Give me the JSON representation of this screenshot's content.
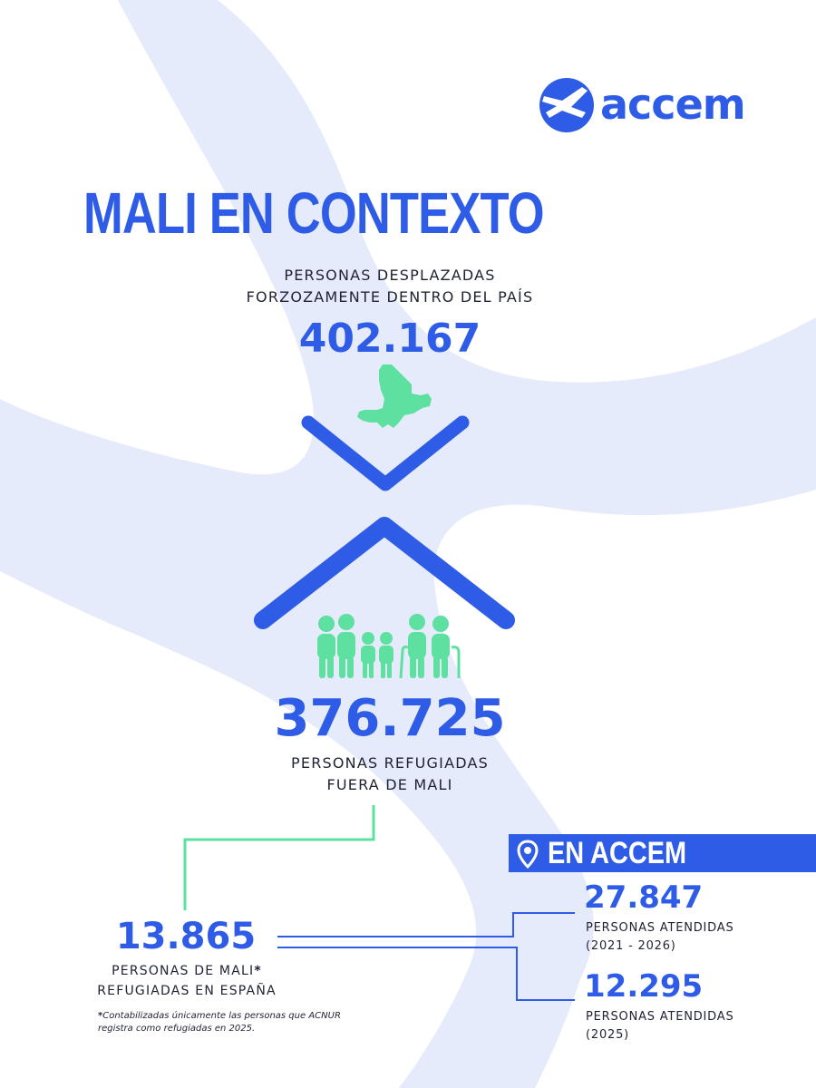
{
  "brand": {
    "name": "accem",
    "primary_color": "#2e5ce6",
    "accent_color": "#5ee0a0",
    "background_wave_color": "#e6ebfb"
  },
  "title": "MALI EN CONTEXTO",
  "displaced": {
    "label_line1": "PERSONAS DESPLAZADAS",
    "label_line2": "FORZOZAMENTE DENTRO DEL PAÍS",
    "value": "402.167",
    "icon": "mali-map-icon"
  },
  "refugees_abroad": {
    "value": "376.725",
    "label_line1": "PERSONAS REFUGIADAS",
    "label_line2": "FUERA DE MALI",
    "icon": "family-group-icon"
  },
  "spain": {
    "value": "13.865",
    "label_line1": "PERSONAS DE MALI",
    "asterisk": "*",
    "label_line2": "REFUGIADAS EN ESPAÑA"
  },
  "footnote": {
    "star": "*",
    "text": "Contabilizadas únicamente las personas que ACNUR registra como refugiadas en 2025."
  },
  "accem": {
    "badge_label": "EN ACCEM",
    "badge_icon": "location-pin-icon",
    "items": [
      {
        "value": "27.847",
        "label_line1": "PERSONAS ATENDIDAS",
        "label_line2": "(2021 - 2026)"
      },
      {
        "value": "12.295",
        "label_line1": "PERSONAS ATENDIDAS",
        "label_line2": "(2025)"
      }
    ]
  }
}
